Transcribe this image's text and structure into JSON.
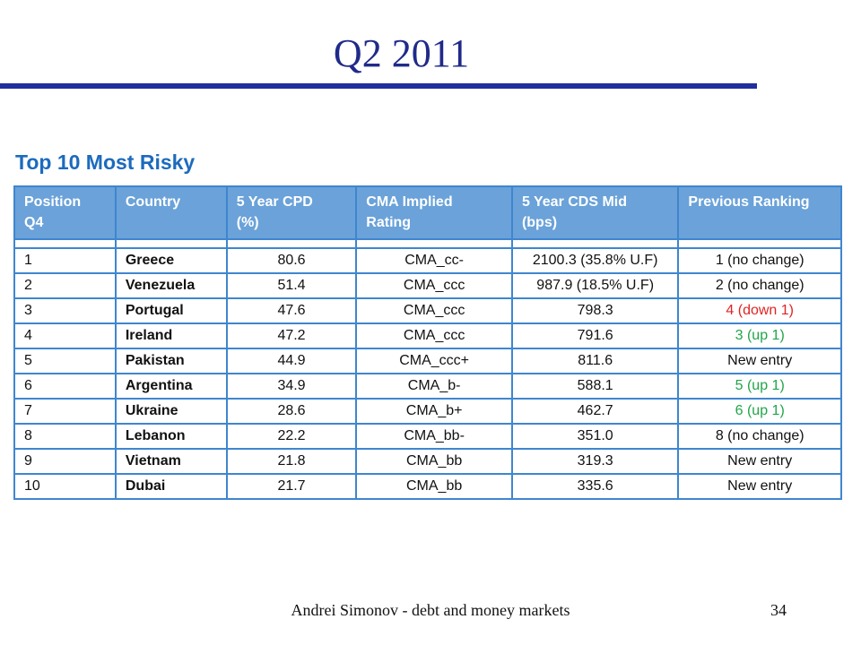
{
  "slide": {
    "title": "Q2 2011",
    "heading": "Top 10 Most Risky",
    "footer": "Andrei Simonov - debt and money markets",
    "page_number": "34",
    "colors": {
      "title": "#1f2a8a",
      "title_rule": "#1f2f9e",
      "heading": "#1c6bbd",
      "header_bg": "#6aa2d9",
      "grid": "#3f86cf",
      "up": "#21a548",
      "down": "#e02424"
    }
  },
  "table": {
    "headers": [
      [
        "Position",
        "Q4"
      ],
      [
        "Country"
      ],
      [
        "5 Year CPD",
        "(%)"
      ],
      [
        "CMA Implied",
        "Rating"
      ],
      [
        "5 Year CDS Mid",
        "(bps)"
      ],
      [
        "Previous Ranking"
      ]
    ],
    "rows": [
      {
        "position": "1",
        "country": "Greece",
        "cpd": "80.6",
        "rating": "CMA_cc-",
        "cds": "2100.3 (35.8% U.F)",
        "previous": "1 (no change)",
        "status": "neutral"
      },
      {
        "position": "2",
        "country": "Venezuela",
        "cpd": "51.4",
        "rating": "CMA_ccc",
        "cds": "987.9 (18.5% U.F)",
        "previous": "2 (no change)",
        "status": "neutral"
      },
      {
        "position": "3",
        "country": "Portugal",
        "cpd": "47.6",
        "rating": "CMA_ccc",
        "cds": "798.3",
        "previous": "4 (down 1)",
        "status": "down"
      },
      {
        "position": "4",
        "country": "Ireland",
        "cpd": "47.2",
        "rating": "CMA_ccc",
        "cds": "791.6",
        "previous": "3 (up 1)",
        "status": "up"
      },
      {
        "position": "5",
        "country": "Pakistan",
        "cpd": "44.9",
        "rating": "CMA_ccc+",
        "cds": "811.6",
        "previous": "New entry",
        "status": "neutral"
      },
      {
        "position": "6",
        "country": "Argentina",
        "cpd": "34.9",
        "rating": "CMA_b-",
        "cds": "588.1",
        "previous": "5 (up 1)",
        "status": "up"
      },
      {
        "position": "7",
        "country": "Ukraine",
        "cpd": "28.6",
        "rating": "CMA_b+",
        "cds": "462.7",
        "previous": "6 (up 1)",
        "status": "up"
      },
      {
        "position": "8",
        "country": "Lebanon",
        "cpd": "22.2",
        "rating": "CMA_bb-",
        "cds": "351.0",
        "previous": "8 (no change)",
        "status": "neutral"
      },
      {
        "position": "9",
        "country": "Vietnam",
        "cpd": "21.8",
        "rating": "CMA_bb",
        "cds": "319.3",
        "previous": "New entry",
        "status": "neutral"
      },
      {
        "position": "10",
        "country": "Dubai",
        "cpd": "21.7",
        "rating": "CMA_bb",
        "cds": "335.6",
        "previous": "New entry",
        "status": "neutral"
      }
    ]
  }
}
